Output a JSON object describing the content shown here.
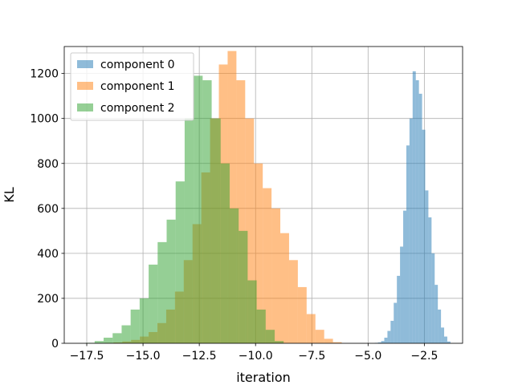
{
  "chart_data": {
    "type": "bar",
    "subtype": "histogram",
    "title": "",
    "xlabel": "iteration",
    "ylabel": "KL",
    "xlim": [
      -18.5,
      -0.8
    ],
    "ylim": [
      0,
      1320
    ],
    "xticks": [
      -17.5,
      -15.0,
      -12.5,
      -10.0,
      -7.5,
      -5.0,
      -2.5
    ],
    "xtick_labels": [
      "−17.5",
      "−15.0",
      "−12.5",
      "−10.0",
      "−7.5",
      "−5.0",
      "−2.5"
    ],
    "yticks": [
      0,
      200,
      400,
      600,
      800,
      1000,
      1200
    ],
    "grid": true,
    "legend_position": "top-left",
    "alpha": 0.5,
    "series": [
      {
        "name": "component 0",
        "color": "#1f77b4",
        "bin_edges": [
          -4.7,
          -4.56,
          -4.42,
          -4.28,
          -4.14,
          -4.0,
          -3.86,
          -3.72,
          -3.58,
          -3.44,
          -3.3,
          -3.16,
          -3.02,
          -2.88,
          -2.74,
          -2.6,
          -2.46,
          -2.32,
          -2.18,
          -2.04,
          -1.9,
          -1.76,
          -1.62,
          -1.48,
          -1.34
        ],
        "counts": [
          2,
          4,
          10,
          25,
          55,
          100,
          180,
          300,
          430,
          590,
          880,
          1000,
          1210,
          1170,
          1110,
          950,
          680,
          560,
          400,
          260,
          150,
          70,
          30,
          8
        ]
      },
      {
        "name": "component 1",
        "color": "#ff7f0e",
        "bin_edges": [
          -16.7,
          -16.31,
          -15.92,
          -15.53,
          -15.14,
          -14.75,
          -14.36,
          -13.97,
          -13.58,
          -13.19,
          -12.8,
          -12.41,
          -12.02,
          -11.63,
          -11.24,
          -10.85,
          -10.46,
          -10.07,
          -9.68,
          -9.29,
          -8.9,
          -8.51,
          -8.12,
          -7.73,
          -7.34,
          -6.95,
          -6.56,
          -6.17
        ],
        "counts": [
          2,
          4,
          8,
          15,
          30,
          50,
          90,
          150,
          230,
          370,
          530,
          760,
          1000,
          1240,
          1300,
          1170,
          1000,
          800,
          690,
          600,
          490,
          370,
          250,
          130,
          60,
          20,
          5
        ]
      },
      {
        "name": "component 2",
        "color": "#2ca02c",
        "bin_edges": [
          -17.55,
          -17.15,
          -16.75,
          -16.35,
          -15.95,
          -15.55,
          -15.15,
          -14.75,
          -14.35,
          -13.95,
          -13.55,
          -13.15,
          -12.75,
          -12.35,
          -11.95,
          -11.55,
          -11.15,
          -10.75,
          -10.35,
          -9.95,
          -9.55,
          -9.15,
          -8.75
        ],
        "counts": [
          2,
          10,
          25,
          45,
          80,
          150,
          200,
          350,
          450,
          550,
          720,
          1000,
          1190,
          1170,
          1000,
          800,
          600,
          500,
          280,
          150,
          60,
          10
        ]
      }
    ]
  }
}
